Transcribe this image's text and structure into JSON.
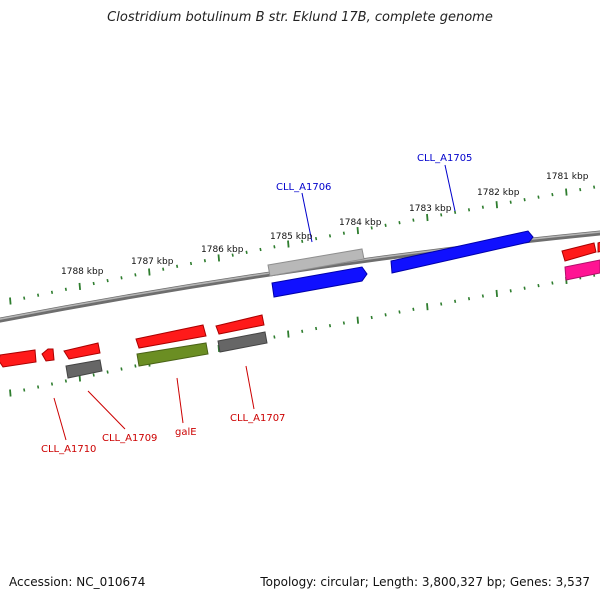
{
  "title": "Clostridium botulinum B str. Eklund 17B, complete genome",
  "footer": {
    "accession": "Accession: NC_010674",
    "summary": "Topology: circular; Length: 3,800,327 bp; Genes: 3,537"
  },
  "colors": {
    "backbone": "#808080",
    "ticks": "#2e7d2e",
    "red": "#ff0000",
    "blue": "#0000ff",
    "gray": "#666666",
    "light_gray": "#b0b0b0",
    "olive": "#6b8e23",
    "pink": "#ff1493",
    "label_blue": "#0000cc",
    "label_red": "#cc0000"
  },
  "kbp_labels": [
    "1781 kbp",
    "1782 kbp",
    "1783 kbp",
    "1784 kbp",
    "1785 kbp",
    "1786 kbp",
    "1787 kbp",
    "1788 kbp"
  ],
  "gene_labels": [
    {
      "name": "CLL_A1705",
      "color": "blue"
    },
    {
      "name": "CLL_A1706",
      "color": "blue"
    },
    {
      "name": "CLL_A1707",
      "color": "red"
    },
    {
      "name": "galE",
      "color": "red"
    },
    {
      "name": "CLL_A1709",
      "color": "red"
    },
    {
      "name": "CLL_A1710",
      "color": "red"
    }
  ]
}
